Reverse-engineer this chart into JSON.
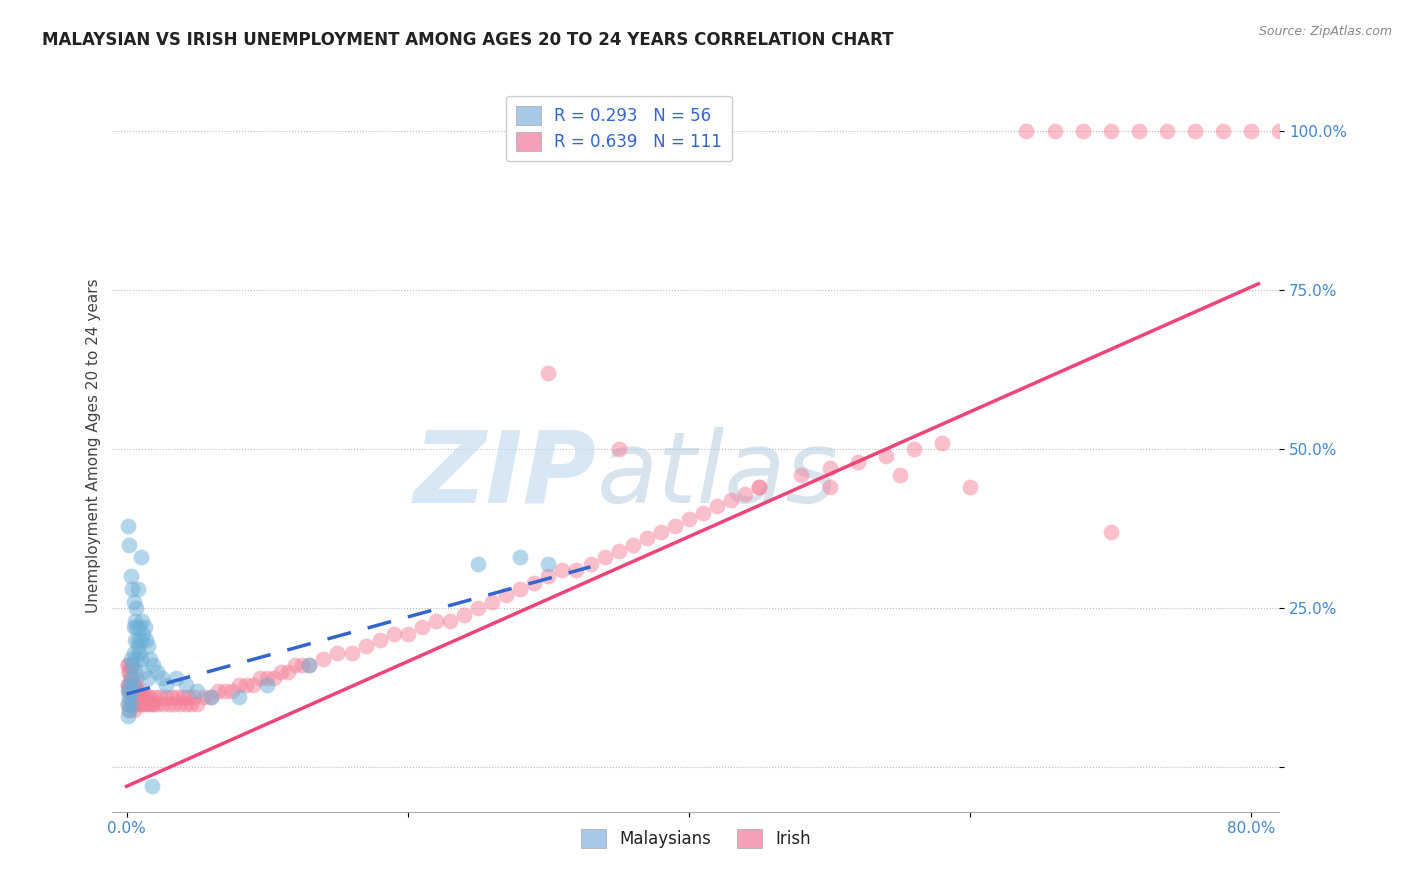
{
  "title": "MALAYSIAN VS IRISH UNEMPLOYMENT AMONG AGES 20 TO 24 YEARS CORRELATION CHART",
  "source": "Source: ZipAtlas.com",
  "ylabel": "Unemployment Among Ages 20 to 24 years",
  "ytick_labels": [
    "",
    "25.0%",
    "50.0%",
    "75.0%",
    "100.0%"
  ],
  "ytick_vals": [
    0.0,
    0.25,
    0.5,
    0.75,
    1.0
  ],
  "xtick_labels": [
    "0.0%",
    "",
    "",
    "",
    "80.0%"
  ],
  "xtick_vals": [
    0.0,
    0.2,
    0.4,
    0.6,
    0.8
  ],
  "xlim": [
    -0.01,
    0.82
  ],
  "ylim": [
    -0.07,
    1.08
  ],
  "legend_label1": "R = 0.293   N = 56",
  "legend_label2": "R = 0.639   N = 111",
  "legend_color1": "#a8c8e8",
  "legend_color2": "#f4a0b8",
  "scatter_color_malaysian": "#6baed6",
  "scatter_color_irish": "#f48098",
  "line_color_malaysian": "#3366cc",
  "line_color_irish": "#ee4477",
  "watermark": "ZIPatlas",
  "watermark_color_zip": "#c0d8ee",
  "watermark_color_atlas": "#a8c8d8",
  "bottom_legend_label1": "Malaysians",
  "bottom_legend_label2": "Irish",
  "malaysian_line_x": [
    0.0,
    0.33
  ],
  "malaysian_line_y": [
    0.115,
    0.315
  ],
  "irish_line_x": [
    0.0,
    0.805
  ],
  "irish_line_y": [
    -0.03,
    0.76
  ],
  "malaysian_x": [
    0.001,
    0.001,
    0.001,
    0.002,
    0.002,
    0.002,
    0.003,
    0.003,
    0.003,
    0.004,
    0.004,
    0.005,
    0.005,
    0.005,
    0.006,
    0.006,
    0.007,
    0.007,
    0.008,
    0.008,
    0.009,
    0.01,
    0.01,
    0.011,
    0.012,
    0.013,
    0.014,
    0.015,
    0.017,
    0.019,
    0.022,
    0.025,
    0.028,
    0.035,
    0.042,
    0.05,
    0.06,
    0.08,
    0.1,
    0.13,
    0.25,
    0.3,
    0.28,
    0.001,
    0.002,
    0.003,
    0.004,
    0.005,
    0.006,
    0.007,
    0.008,
    0.009,
    0.01,
    0.012,
    0.015,
    0.018
  ],
  "malaysian_y": [
    0.08,
    0.1,
    0.12,
    0.09,
    0.11,
    0.13,
    0.1,
    0.14,
    0.17,
    0.12,
    0.16,
    0.13,
    0.18,
    0.22,
    0.15,
    0.2,
    0.17,
    0.25,
    0.19,
    0.28,
    0.22,
    0.2,
    0.33,
    0.23,
    0.21,
    0.22,
    0.2,
    0.19,
    0.17,
    0.16,
    0.15,
    0.14,
    0.13,
    0.14,
    0.13,
    0.12,
    0.11,
    0.11,
    0.13,
    0.16,
    0.32,
    0.32,
    0.33,
    0.38,
    0.35,
    0.3,
    0.28,
    0.26,
    0.23,
    0.22,
    0.2,
    0.18,
    0.17,
    0.15,
    0.14,
    -0.03
  ],
  "irish_x": [
    0.001,
    0.001,
    0.001,
    0.002,
    0.002,
    0.002,
    0.003,
    0.003,
    0.004,
    0.004,
    0.005,
    0.005,
    0.006,
    0.006,
    0.007,
    0.007,
    0.008,
    0.008,
    0.009,
    0.01,
    0.01,
    0.011,
    0.012,
    0.013,
    0.014,
    0.015,
    0.016,
    0.017,
    0.018,
    0.019,
    0.02,
    0.022,
    0.024,
    0.026,
    0.028,
    0.03,
    0.032,
    0.034,
    0.036,
    0.038,
    0.04,
    0.042,
    0.044,
    0.046,
    0.048,
    0.05,
    0.055,
    0.06,
    0.065,
    0.07,
    0.075,
    0.08,
    0.085,
    0.09,
    0.095,
    0.1,
    0.105,
    0.11,
    0.115,
    0.12,
    0.125,
    0.13,
    0.14,
    0.15,
    0.16,
    0.17,
    0.18,
    0.19,
    0.2,
    0.21,
    0.22,
    0.23,
    0.24,
    0.25,
    0.26,
    0.27,
    0.28,
    0.29,
    0.3,
    0.31,
    0.32,
    0.33,
    0.34,
    0.35,
    0.36,
    0.37,
    0.38,
    0.39,
    0.4,
    0.41,
    0.42,
    0.43,
    0.44,
    0.45,
    0.48,
    0.5,
    0.52,
    0.54,
    0.56,
    0.58,
    0.6,
    0.7,
    0.001,
    0.001,
    0.002,
    0.002,
    0.003,
    0.003,
    0.004,
    0.005
  ],
  "irish_y": [
    0.1,
    0.13,
    0.16,
    0.09,
    0.12,
    0.15,
    0.11,
    0.14,
    0.1,
    0.13,
    0.09,
    0.12,
    0.1,
    0.13,
    0.11,
    0.14,
    0.1,
    0.12,
    0.11,
    0.1,
    0.12,
    0.11,
    0.1,
    0.11,
    0.1,
    0.11,
    0.1,
    0.11,
    0.1,
    0.1,
    0.11,
    0.1,
    0.11,
    0.1,
    0.11,
    0.1,
    0.11,
    0.1,
    0.11,
    0.1,
    0.11,
    0.1,
    0.11,
    0.1,
    0.11,
    0.1,
    0.11,
    0.11,
    0.12,
    0.12,
    0.12,
    0.13,
    0.13,
    0.13,
    0.14,
    0.14,
    0.14,
    0.15,
    0.15,
    0.16,
    0.16,
    0.16,
    0.17,
    0.18,
    0.18,
    0.19,
    0.2,
    0.21,
    0.21,
    0.22,
    0.23,
    0.23,
    0.24,
    0.25,
    0.26,
    0.27,
    0.28,
    0.29,
    0.3,
    0.31,
    0.31,
    0.32,
    0.33,
    0.34,
    0.35,
    0.36,
    0.37,
    0.38,
    0.39,
    0.4,
    0.41,
    0.42,
    0.43,
    0.44,
    0.46,
    0.47,
    0.48,
    0.49,
    0.5,
    0.51,
    0.44,
    0.37,
    0.13,
    0.16,
    0.12,
    0.15,
    0.13,
    0.16,
    0.13,
    0.13
  ],
  "irish_top_x": [
    0.64,
    0.66,
    0.68,
    0.7,
    0.72,
    0.74,
    0.76,
    0.78,
    0.8,
    0.82,
    0.3,
    0.35,
    0.45,
    0.5,
    0.55
  ],
  "irish_top_y": [
    1.0,
    1.0,
    1.0,
    1.0,
    1.0,
    1.0,
    1.0,
    1.0,
    1.0,
    1.0,
    0.62,
    0.5,
    0.44,
    0.44,
    0.46
  ]
}
